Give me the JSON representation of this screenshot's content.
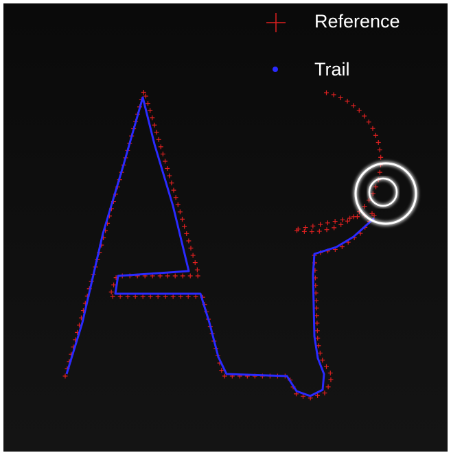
{
  "legend": {
    "items": [
      {
        "label": "Reference"
      },
      {
        "label": "Trail"
      }
    ]
  }
}
